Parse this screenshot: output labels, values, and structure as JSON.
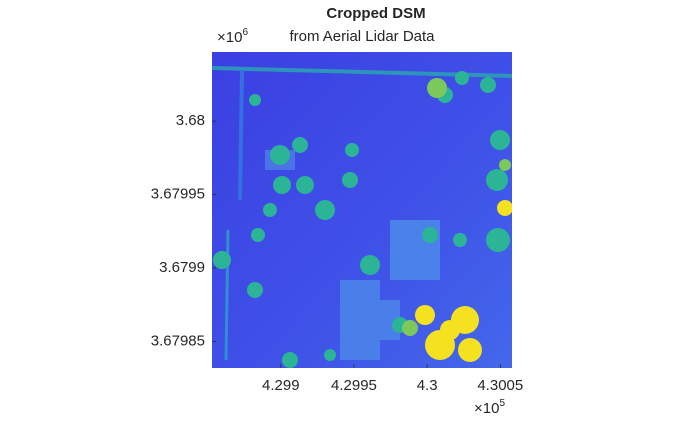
{
  "chart_data": {
    "type": "image",
    "title": "Cropped DSM",
    "subtitle": "from Aerial Lidar Data",
    "xlim": [
      4.29853,
      4.30058
    ],
    "xticks": [
      4.299,
      4.2995,
      4.3,
      4.3005
    ],
    "ylim": [
      3.679832,
      3.680047
    ],
    "yticks": [
      3.67985,
      3.6799,
      3.67995,
      3.68
    ],
    "x_multiplier": {
      "base": "×10",
      "exponent": "5"
    },
    "y_multiplier": {
      "base": "×10",
      "exponent": "6"
    }
  }
}
